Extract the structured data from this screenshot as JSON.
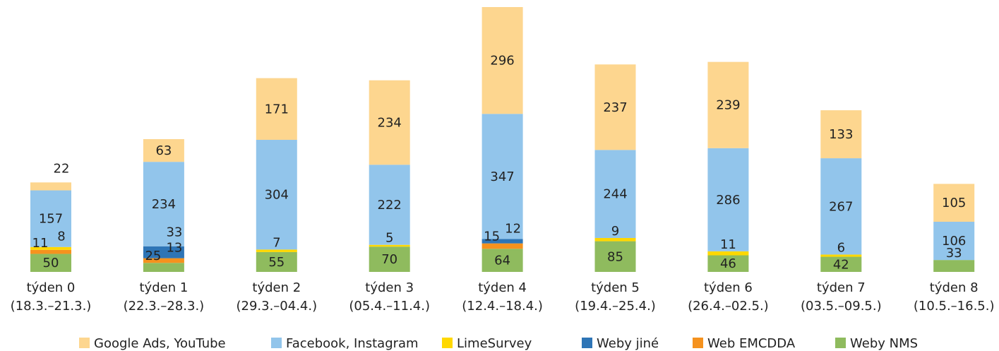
{
  "chart_data": {
    "type": "stacked_bar",
    "categories": [
      [
        "týden 0",
        "(18.3.–21.3.)"
      ],
      [
        "týden 1",
        "(22.3.–28.3.)"
      ],
      [
        "týden 2",
        "(29.3.–04.4.)"
      ],
      [
        "týden 3",
        "(05.4.–11.4.)"
      ],
      [
        "týden 4",
        "(12.4.–18.4.)"
      ],
      [
        "týden 5",
        "(19.4.–25.4.)"
      ],
      [
        "týden 6",
        "(26.4.–02.5.)"
      ],
      [
        "týden 7",
        "(03.5.–09.5.)"
      ],
      [
        "týden 8",
        "(10.5.–16.5.)"
      ]
    ],
    "series": [
      {
        "name": "Weby NMS",
        "color": "#8fbb5e",
        "values": [
          50,
          25,
          55,
          70,
          64,
          85,
          46,
          42,
          33
        ]
      },
      {
        "name": "Web EMCDDA",
        "color": "#f5921e",
        "values": [
          11,
          13,
          null,
          null,
          15,
          null,
          null,
          null,
          null
        ]
      },
      {
        "name": "Weby jiné",
        "color": "#2e75b6",
        "values": [
          null,
          33,
          null,
          null,
          12,
          null,
          null,
          null,
          null
        ]
      },
      {
        "name": "LimeSurvey",
        "color": "#ffd800",
        "values": [
          8,
          null,
          7,
          5,
          null,
          9,
          11,
          6,
          null
        ]
      },
      {
        "name": "Facebook, Instagram",
        "color": "#92c5eb",
        "values": [
          157,
          234,
          304,
          222,
          347,
          244,
          286,
          267,
          106
        ]
      },
      {
        "name": "Google Ads, YouTube",
        "color": "#fdd68f",
        "values": [
          22,
          63,
          171,
          234,
          296,
          237,
          239,
          133,
          105
        ]
      }
    ],
    "legend": "bottom"
  }
}
